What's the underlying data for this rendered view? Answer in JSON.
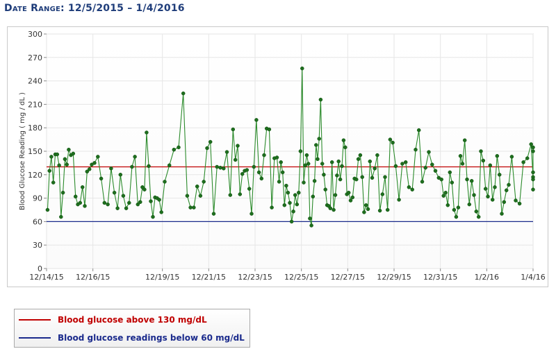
{
  "header": {
    "date_range": "Date Range: 12/5/2015 – 1/4/2016"
  },
  "legend": [
    {
      "label": "Blood glucose above 130 mg/dL",
      "color": "#c00000"
    },
    {
      "label": "Blood glucose readings below 60 mg/dL",
      "color": "#1a2a8c"
    }
  ],
  "chart_data": {
    "type": "line",
    "ylabel": "Blood Glucose Reading ( mg / dL )",
    "xlabel": "",
    "ylim": [
      0,
      300
    ],
    "yticks": [
      0,
      30,
      60,
      90,
      120,
      150,
      180,
      210,
      240,
      270,
      300
    ],
    "x_range": [
      "2015-12-14",
      "2016-01-04"
    ],
    "x_ticks": [
      {
        "date": "2015-12-14",
        "label": "12/14/15"
      },
      {
        "date": "2015-12-16",
        "label": "12/16/15"
      },
      {
        "date": "2015-12-19",
        "label": "12/19/15"
      },
      {
        "date": "2015-12-21",
        "label": "12/21/15"
      },
      {
        "date": "2015-12-23",
        "label": "12/23/15"
      },
      {
        "date": "2015-12-25",
        "label": "12/25/15"
      },
      {
        "date": "2015-12-27",
        "label": "12/27/15"
      },
      {
        "date": "2015-12-29",
        "label": "12/29/15"
      },
      {
        "date": "2015-12-31",
        "label": "12/31/15"
      },
      {
        "date": "2016-01-02",
        "label": "1/2/16"
      },
      {
        "date": "2016-01-04",
        "label": "1/4/16"
      }
    ],
    "grid": true,
    "reference_lines": [
      {
        "value": 130,
        "color": "#c00000",
        "label": "Blood glucose above 130 mg/dL"
      },
      {
        "value": 60,
        "color": "#1a2a8c",
        "label": "Blood glucose readings below 60 mg/dL"
      }
    ],
    "series": [
      {
        "color": "#2a8a2a",
        "points": [
          [
            "2015-12-14",
            75
          ],
          [
            "2015-12-14",
            125
          ],
          [
            "2015-12-14",
            143
          ],
          [
            "2015-12-14",
            110
          ],
          [
            "2015-12-14",
            146
          ],
          [
            "2015-12-14",
            146
          ],
          [
            "2015-12-14",
            132
          ],
          [
            "2015-12-14",
            66
          ],
          [
            "2015-12-14",
            97
          ],
          [
            "2015-12-14",
            140
          ],
          [
            "2015-12-14",
            133
          ],
          [
            "2015-12-14",
            152
          ],
          [
            "2015-12-15",
            145
          ],
          [
            "2015-12-15",
            147
          ],
          [
            "2015-12-15",
            92
          ],
          [
            "2015-12-15",
            82
          ],
          [
            "2015-12-15",
            84
          ],
          [
            "2015-12-15",
            104
          ],
          [
            "2015-12-15",
            80
          ],
          [
            "2015-12-15",
            124
          ],
          [
            "2015-12-15",
            127
          ],
          [
            "2015-12-15",
            133
          ],
          [
            "2015-12-16",
            135
          ],
          [
            "2015-12-16",
            143
          ],
          [
            "2015-12-16",
            115
          ],
          [
            "2015-12-16",
            84
          ],
          [
            "2015-12-16",
            82
          ],
          [
            "2015-12-16",
            128
          ],
          [
            "2015-12-16",
            97
          ],
          [
            "2015-12-17",
            77
          ],
          [
            "2015-12-17",
            120
          ],
          [
            "2015-12-17",
            93
          ],
          [
            "2015-12-17",
            77
          ],
          [
            "2015-12-17",
            84
          ],
          [
            "2015-12-17",
            130
          ],
          [
            "2015-12-17",
            143
          ],
          [
            "2015-12-17",
            82
          ],
          [
            "2015-12-18",
            85
          ],
          [
            "2015-12-18",
            104
          ],
          [
            "2015-12-18",
            101
          ],
          [
            "2015-12-18",
            174
          ],
          [
            "2015-12-18",
            131
          ],
          [
            "2015-12-18",
            86
          ],
          [
            "2015-12-18",
            66
          ],
          [
            "2015-12-18",
            91
          ],
          [
            "2015-12-18",
            90
          ],
          [
            "2015-12-18",
            88
          ],
          [
            "2015-12-18",
            72
          ],
          [
            "2015-12-19",
            111
          ],
          [
            "2015-12-19",
            132
          ],
          [
            "2015-12-19",
            152
          ],
          [
            "2015-12-19",
            155
          ],
          [
            "2015-12-19",
            224
          ],
          [
            "2015-12-20",
            93
          ],
          [
            "2015-12-20",
            78
          ],
          [
            "2015-12-20",
            78
          ],
          [
            "2015-12-20",
            105
          ],
          [
            "2015-12-20",
            93
          ],
          [
            "2015-12-20",
            111
          ],
          [
            "2015-12-20",
            154
          ],
          [
            "2015-12-21",
            162
          ],
          [
            "2015-12-21",
            70
          ],
          [
            "2015-12-21",
            130
          ],
          [
            "2015-12-21",
            129
          ],
          [
            "2015-12-21",
            128
          ],
          [
            "2015-12-21",
            149
          ],
          [
            "2015-12-21",
            94
          ],
          [
            "2015-12-22",
            178
          ],
          [
            "2015-12-22",
            139
          ],
          [
            "2015-12-22",
            157
          ],
          [
            "2015-12-22",
            95
          ],
          [
            "2015-12-22",
            121
          ],
          [
            "2015-12-22",
            125
          ],
          [
            "2015-12-22",
            126
          ],
          [
            "2015-12-22",
            102
          ],
          [
            "2015-12-22",
            70
          ],
          [
            "2015-12-22",
            130
          ],
          [
            "2015-12-23",
            190
          ],
          [
            "2015-12-23",
            123
          ],
          [
            "2015-12-23",
            115
          ],
          [
            "2015-12-23",
            145
          ],
          [
            "2015-12-23",
            179
          ],
          [
            "2015-12-23",
            178
          ],
          [
            "2015-12-23",
            78
          ],
          [
            "2015-12-23",
            141
          ],
          [
            "2015-12-23",
            142
          ],
          [
            "2015-12-24",
            111
          ],
          [
            "2015-12-24",
            136
          ],
          [
            "2015-12-24",
            123
          ],
          [
            "2015-12-24",
            81
          ],
          [
            "2015-12-24",
            106
          ],
          [
            "2015-12-24",
            97
          ],
          [
            "2015-12-24",
            84
          ],
          [
            "2015-12-24",
            60
          ],
          [
            "2015-12-24",
            73
          ],
          [
            "2015-12-24",
            94
          ],
          [
            "2015-12-24",
            82
          ],
          [
            "2015-12-24",
            97
          ],
          [
            "2015-12-24",
            150
          ],
          [
            "2015-12-25",
            256
          ],
          [
            "2015-12-25",
            110
          ],
          [
            "2015-12-25",
            132
          ],
          [
            "2015-12-25",
            145
          ],
          [
            "2015-12-25",
            134
          ],
          [
            "2015-12-25",
            64
          ],
          [
            "2015-12-25",
            55
          ],
          [
            "2015-12-25",
            92
          ],
          [
            "2015-12-25",
            112
          ],
          [
            "2015-12-25",
            158
          ],
          [
            "2015-12-25",
            140
          ],
          [
            "2015-12-25",
            166
          ],
          [
            "2015-12-25",
            216
          ],
          [
            "2015-12-25",
            134
          ],
          [
            "2015-12-25",
            120
          ],
          [
            "2015-12-26",
            101
          ],
          [
            "2015-12-26",
            81
          ],
          [
            "2015-12-26",
            80
          ],
          [
            "2015-12-26",
            77
          ],
          [
            "2015-12-26",
            136
          ],
          [
            "2015-12-26",
            75
          ],
          [
            "2015-12-26",
            94
          ],
          [
            "2015-12-26",
            119
          ],
          [
            "2015-12-26",
            137
          ],
          [
            "2015-12-26",
            114
          ],
          [
            "2015-12-26",
            131
          ],
          [
            "2015-12-26",
            164
          ],
          [
            "2015-12-26",
            155
          ],
          [
            "2015-12-26",
            95
          ],
          [
            "2015-12-27",
            97
          ],
          [
            "2015-12-27",
            87
          ],
          [
            "2015-12-27",
            91
          ],
          [
            "2015-12-27",
            115
          ],
          [
            "2015-12-27",
            114
          ],
          [
            "2015-12-27",
            140
          ],
          [
            "2015-12-27",
            145
          ],
          [
            "2015-12-27",
            117
          ],
          [
            "2015-12-27",
            72
          ],
          [
            "2015-12-27",
            81
          ],
          [
            "2015-12-27",
            76
          ],
          [
            "2015-12-27",
            137
          ],
          [
            "2015-12-28",
            116
          ],
          [
            "2015-12-28",
            128
          ],
          [
            "2015-12-28",
            145
          ],
          [
            "2015-12-28",
            74
          ],
          [
            "2015-12-28",
            95
          ],
          [
            "2015-12-28",
            117
          ],
          [
            "2015-12-28",
            75
          ],
          [
            "2015-12-28",
            165
          ],
          [
            "2015-12-28",
            161
          ],
          [
            "2015-12-29",
            131
          ],
          [
            "2015-12-29",
            88
          ],
          [
            "2015-12-29",
            134
          ],
          [
            "2015-12-29",
            136
          ],
          [
            "2015-12-29",
            104
          ],
          [
            "2015-12-29",
            101
          ],
          [
            "2015-12-29",
            152
          ],
          [
            "2015-12-30",
            177
          ],
          [
            "2015-12-30",
            111
          ],
          [
            "2015-12-30",
            129
          ],
          [
            "2015-12-30",
            149
          ],
          [
            "2015-12-30",
            133
          ],
          [
            "2015-12-30",
            125
          ],
          [
            "2015-12-30",
            116
          ],
          [
            "2015-12-31",
            114
          ],
          [
            "2015-12-31",
            93
          ],
          [
            "2015-12-31",
            97
          ],
          [
            "2015-12-31",
            81
          ],
          [
            "2015-12-31",
            123
          ],
          [
            "2015-12-31",
            110
          ],
          [
            "2015-12-31",
            75
          ],
          [
            "2015-12-31",
            66
          ],
          [
            "2015-12-31",
            78
          ],
          [
            "2015-12-31",
            144
          ],
          [
            "2015-12-31",
            134
          ],
          [
            "2016-01-01",
            164
          ],
          [
            "2016-01-01",
            114
          ],
          [
            "2016-01-01",
            82
          ],
          [
            "2016-01-01",
            112
          ],
          [
            "2016-01-01",
            94
          ],
          [
            "2016-01-01",
            73
          ],
          [
            "2016-01-01",
            66
          ],
          [
            "2016-01-01",
            150
          ],
          [
            "2016-01-01",
            138
          ],
          [
            "2016-01-01",
            102
          ],
          [
            "2016-01-02",
            92
          ],
          [
            "2016-01-02",
            132
          ],
          [
            "2016-01-02",
            88
          ],
          [
            "2016-01-02",
            104
          ],
          [
            "2016-01-02",
            144
          ],
          [
            "2016-01-02",
            120
          ],
          [
            "2016-01-02",
            70
          ],
          [
            "2016-01-02",
            85
          ],
          [
            "2016-01-02",
            100
          ],
          [
            "2016-01-02",
            107
          ],
          [
            "2016-01-03",
            143
          ],
          [
            "2016-01-03",
            87
          ],
          [
            "2016-01-03",
            83
          ],
          [
            "2016-01-03",
            136
          ],
          [
            "2016-01-03",
            141
          ],
          [
            "2016-01-03",
            159
          ],
          [
            "2016-01-04",
            117
          ],
          [
            "2016-01-04",
            150
          ],
          [
            "2016-01-04",
            123
          ],
          [
            "2016-01-04",
            101
          ],
          [
            "2016-01-04",
            114
          ],
          [
            "2016-01-04",
            155
          ]
        ]
      }
    ]
  }
}
